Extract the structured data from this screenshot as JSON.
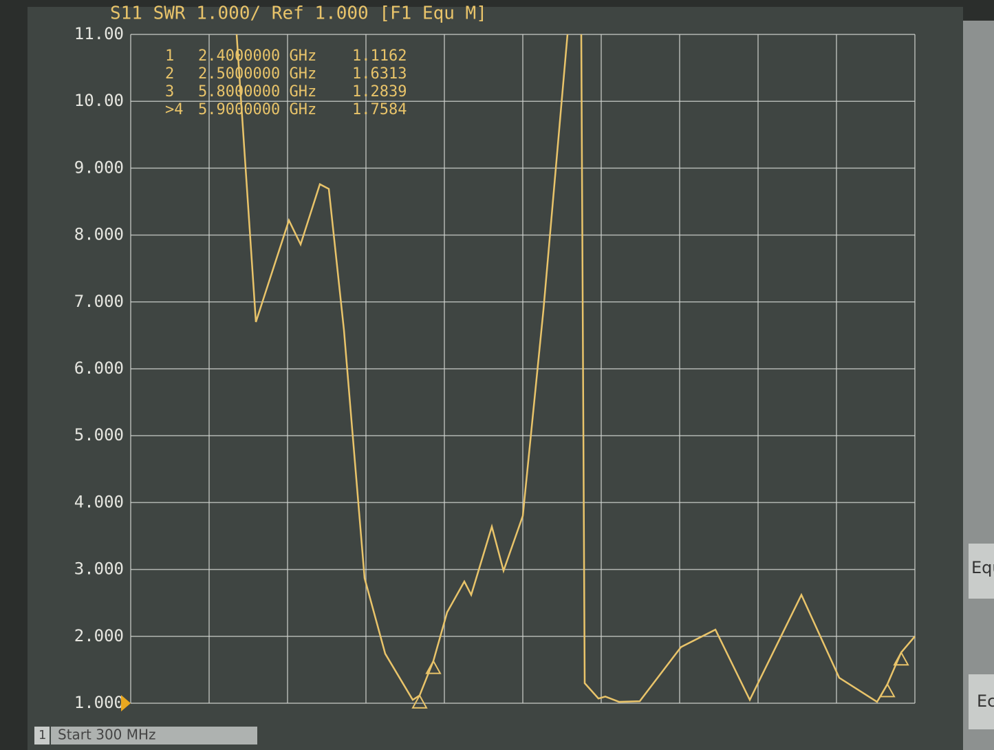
{
  "chart_data": {
    "type": "line",
    "title": "S11 SWR 1.000/ Ref 1.000 [F1 Equ M]",
    "channel": "1",
    "start_label": "Start 300 MHz",
    "softkeys": [
      "Equ",
      "Ec"
    ],
    "x": [
      1.07,
      1.21,
      1.45,
      1.535,
      1.675,
      1.74,
      1.85,
      2.0,
      2.15,
      2.35,
      2.4,
      2.5,
      2.6,
      2.725,
      2.775,
      2.925,
      3.01,
      3.15,
      3.3,
      3.475,
      null,
      3.575,
      3.6,
      3.7,
      3.75,
      3.85,
      4.0,
      4.3,
      4.55,
      4.8,
      5.175,
      5.45,
      5.725,
      5.8,
      5.9,
      6.0
    ],
    "series": [
      {
        "name": "S11",
        "color": "#e9c46a",
        "values": [
          11,
          6.7,
          8.22,
          7.86,
          8.76,
          8.69,
          6.58,
          2.87,
          1.74,
          1.05,
          1.1162,
          1.6313,
          2.36,
          2.82,
          2.62,
          3.64,
          2.98,
          3.8,
          6.88,
          11,
          null,
          11,
          1.3,
          1.07,
          1.1,
          1.02,
          1.03,
          1.84,
          2.1,
          1.05,
          2.62,
          1.38,
          1.02,
          1.2839,
          1.7584,
          2.0
        ]
      }
    ],
    "markers": [
      {
        "id": "1",
        "freq": 2.4,
        "freq_label": "2.4000000 GHz",
        "value": 1.1162
      },
      {
        "id": "2",
        "freq": 2.5,
        "freq_label": "2.5000000 GHz",
        "value": 1.6313
      },
      {
        "id": "3",
        "freq": 5.8,
        "freq_label": "5.8000000 GHz",
        "value": 1.2839
      },
      {
        "id": ">4",
        "freq": 5.9,
        "freq_label": "5.9000000 GHz",
        "value": 1.7584
      }
    ],
    "xlim": [
      0.3,
      6.0
    ],
    "ylim": [
      1,
      11
    ],
    "yticks": [
      {
        "value": 11,
        "label": "11.00"
      },
      {
        "value": 10,
        "label": "10.00"
      },
      {
        "value": 9,
        "label": "9.000"
      },
      {
        "value": 8,
        "label": "8.000"
      },
      {
        "value": 7,
        "label": "7.000"
      },
      {
        "value": 6,
        "label": "6.000"
      },
      {
        "value": 5,
        "label": "5.000"
      },
      {
        "value": 4,
        "label": "4.000"
      },
      {
        "value": 3,
        "label": "3.000"
      },
      {
        "value": 2,
        "label": "2.000"
      },
      {
        "value": 1,
        "label": "1.000"
      }
    ],
    "grid": true
  }
}
